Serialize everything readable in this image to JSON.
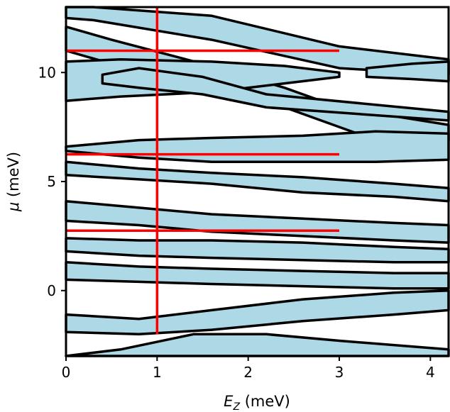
{
  "chart_data": {
    "type": "area",
    "title": "",
    "xlabel_main": "E",
    "xlabel_sub": "Z",
    "xlabel_unit": " (meV)",
    "ylabel_main": "μ",
    "ylabel_unit": " (meV)",
    "xlim": [
      0,
      4.2
    ],
    "ylim": [
      -3,
      13
    ],
    "xticks": [
      0,
      1,
      2,
      3,
      4
    ],
    "yticks": [
      0,
      5,
      10
    ],
    "grid": false,
    "fill_color": "#add8e6",
    "line_color": "#000000",
    "marker_color": "#ff0000",
    "region_bands": [
      {
        "polygon": [
          [
            0.0,
            13.0
          ],
          [
            0.3,
            13.0
          ],
          [
            1.6,
            12.6
          ],
          [
            3.0,
            11.2
          ],
          [
            4.2,
            10.6
          ],
          [
            4.2,
            9.9
          ],
          [
            3.0,
            10.2
          ],
          [
            1.6,
            11.5
          ],
          [
            0.3,
            12.4
          ],
          [
            0.0,
            12.5
          ]
        ]
      },
      {
        "polygon": [
          [
            0.0,
            12.1
          ],
          [
            0.5,
            11.5
          ],
          [
            1.5,
            10.4
          ],
          [
            2.4,
            9.3
          ],
          [
            3.0,
            8.4
          ],
          [
            4.2,
            7.6
          ],
          [
            4.2,
            6.9
          ],
          [
            3.2,
            7.2
          ],
          [
            2.4,
            8.4
          ],
          [
            1.5,
            9.3
          ],
          [
            0.5,
            10.4
          ],
          [
            0.0,
            11.0
          ]
        ]
      },
      {
        "polygon": [
          [
            0.0,
            10.5
          ],
          [
            0.6,
            10.6
          ],
          [
            1.6,
            10.5
          ],
          [
            2.4,
            10.3
          ],
          [
            3.0,
            10.0
          ],
          [
            3.0,
            9.8
          ],
          [
            2.4,
            9.5
          ],
          [
            1.6,
            9.1
          ],
          [
            0.6,
            8.9
          ],
          [
            0.0,
            8.7
          ]
        ]
      },
      {
        "polygon": [
          [
            0.4,
            9.9
          ],
          [
            0.8,
            10.2
          ],
          [
            1.5,
            9.8
          ],
          [
            2.2,
            9.0
          ],
          [
            4.2,
            8.2
          ],
          [
            4.2,
            7.8
          ],
          [
            2.2,
            8.4
          ],
          [
            1.5,
            9.0
          ],
          [
            0.8,
            9.3
          ],
          [
            0.4,
            9.5
          ]
        ]
      },
      {
        "polygon": [
          [
            3.3,
            10.2
          ],
          [
            3.8,
            10.4
          ],
          [
            4.2,
            10.5
          ],
          [
            4.2,
            9.6
          ],
          [
            3.8,
            9.7
          ],
          [
            3.3,
            9.8
          ]
        ]
      },
      {
        "polygon": [
          [
            0.0,
            6.6
          ],
          [
            0.8,
            6.9
          ],
          [
            1.6,
            7.0
          ],
          [
            2.6,
            7.1
          ],
          [
            3.4,
            7.3
          ],
          [
            4.2,
            7.2
          ],
          [
            4.2,
            6.0
          ],
          [
            3.4,
            5.9
          ],
          [
            2.6,
            5.9
          ],
          [
            1.6,
            5.9
          ],
          [
            0.8,
            6.1
          ],
          [
            0.0,
            6.4
          ]
        ]
      },
      {
        "polygon": [
          [
            0.0,
            5.9
          ],
          [
            0.8,
            5.6
          ],
          [
            1.6,
            5.4
          ],
          [
            2.6,
            5.2
          ],
          [
            3.6,
            4.9
          ],
          [
            4.2,
            4.7
          ],
          [
            4.2,
            4.1
          ],
          [
            3.6,
            4.3
          ],
          [
            2.6,
            4.5
          ],
          [
            1.6,
            4.9
          ],
          [
            0.8,
            5.1
          ],
          [
            0.0,
            5.3
          ]
        ]
      },
      {
        "polygon": [
          [
            0.0,
            4.1
          ],
          [
            0.8,
            3.8
          ],
          [
            1.6,
            3.5
          ],
          [
            2.6,
            3.3
          ],
          [
            3.6,
            3.1
          ],
          [
            4.2,
            3.0
          ],
          [
            4.2,
            2.2
          ],
          [
            3.6,
            2.3
          ],
          [
            2.6,
            2.5
          ],
          [
            1.6,
            2.7
          ],
          [
            0.8,
            3.0
          ],
          [
            0.0,
            3.2
          ]
        ]
      },
      {
        "polygon": [
          [
            0.0,
            2.4
          ],
          [
            0.8,
            2.3
          ],
          [
            1.6,
            2.3
          ],
          [
            2.6,
            2.2
          ],
          [
            3.6,
            2.0
          ],
          [
            4.2,
            1.9
          ],
          [
            4.2,
            1.3
          ],
          [
            3.6,
            1.3
          ],
          [
            2.6,
            1.4
          ],
          [
            1.6,
            1.5
          ],
          [
            0.8,
            1.6
          ],
          [
            0.0,
            1.8
          ]
        ]
      },
      {
        "polygon": [
          [
            0.0,
            1.3
          ],
          [
            0.8,
            1.1
          ],
          [
            1.6,
            1.0
          ],
          [
            2.6,
            0.9
          ],
          [
            3.6,
            0.8
          ],
          [
            4.2,
            0.8
          ],
          [
            4.2,
            0.1
          ],
          [
            3.6,
            0.1
          ],
          [
            2.6,
            0.2
          ],
          [
            1.6,
            0.3
          ],
          [
            0.8,
            0.4
          ],
          [
            0.0,
            0.5
          ]
        ]
      },
      {
        "polygon": [
          [
            0.0,
            -1.1
          ],
          [
            0.8,
            -1.3
          ],
          [
            1.6,
            -0.9
          ],
          [
            2.6,
            -0.4
          ],
          [
            3.6,
            -0.1
          ],
          [
            4.2,
            0.0
          ],
          [
            4.2,
            -0.9
          ],
          [
            3.6,
            -1.1
          ],
          [
            2.6,
            -1.4
          ],
          [
            1.6,
            -1.8
          ],
          [
            0.8,
            -2.0
          ],
          [
            0.0,
            -1.9
          ]
        ]
      },
      {
        "polygon": [
          [
            0.0,
            -3.0
          ],
          [
            0.6,
            -2.7
          ],
          [
            1.4,
            -2.0
          ],
          [
            2.2,
            -2.0
          ],
          [
            3.0,
            -2.3
          ],
          [
            4.2,
            -2.7
          ],
          [
            4.2,
            -3.0
          ]
        ]
      }
    ],
    "vertical_marker_x": 1.0,
    "vertical_marker_y_range": [
      -2.0,
      13.0
    ],
    "horizontal_marker_y": [
      11.0,
      6.25,
      2.75
    ],
    "horizontal_marker_x_range": [
      0.0,
      3.0
    ]
  }
}
